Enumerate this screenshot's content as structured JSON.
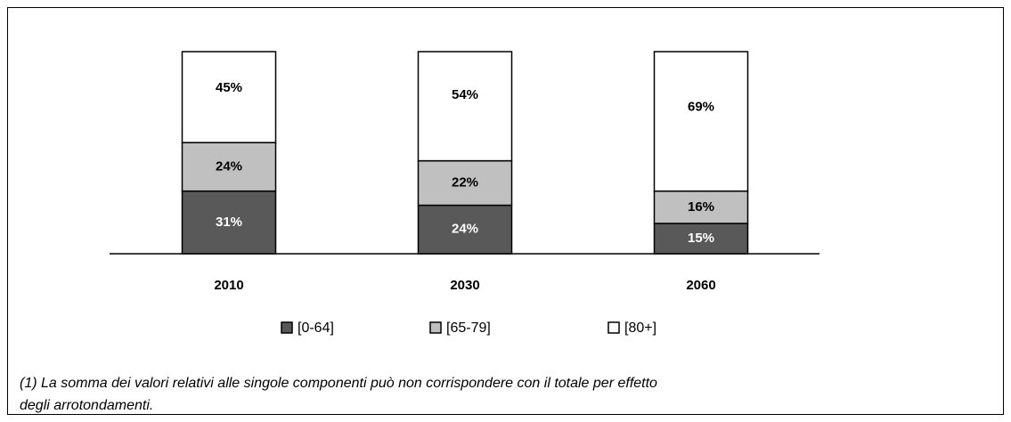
{
  "chart_data": {
    "type": "stacked_bar",
    "categories": [
      "2010",
      "2030",
      "2060"
    ],
    "series": [
      {
        "name": "[0-64]",
        "color": "#595959",
        "values": [
          31,
          24,
          15
        ],
        "value_labels": [
          "31%",
          "24%",
          "15%"
        ]
      },
      {
        "name": "[65-79]",
        "color": "#c0c0c0",
        "values": [
          24,
          22,
          16
        ],
        "value_labels": [
          "24%",
          "22%",
          "16%"
        ]
      },
      {
        "name": "[80+]",
        "color": "#ffffff",
        "values": [
          45,
          54,
          69
        ],
        "value_labels": [
          "45%",
          "54%",
          "69%"
        ]
      }
    ],
    "ylim": [
      0,
      100
    ],
    "footnote": [
      "(1) La somma dei valori relativi alle singole componenti può non corrispondere con il totale per effetto",
      "degli arrotondamenti."
    ]
  }
}
